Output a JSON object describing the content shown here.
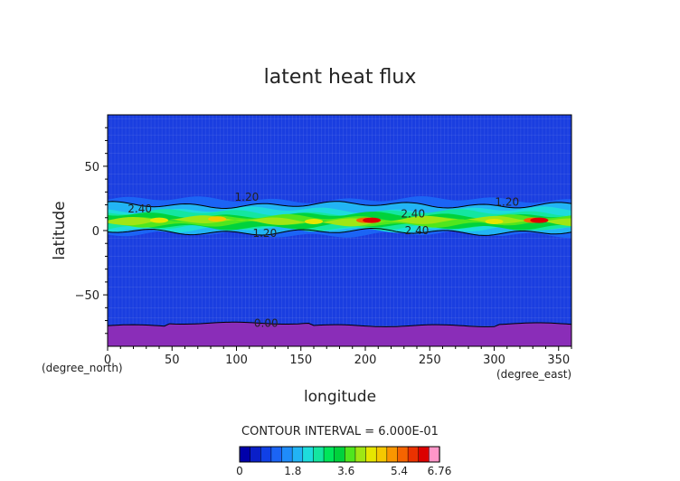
{
  "chart_data": {
    "type": "heatmap",
    "title": "latent heat flux",
    "xlabel": "longitude",
    "ylabel": "latitude",
    "x_unit": "(degree_east)",
    "y_unit": "(degree_north)",
    "xlim": [
      0,
      360
    ],
    "ylim": [
      -90,
      90
    ],
    "x_ticks": [
      "0",
      "50",
      "100",
      "150",
      "200",
      "250",
      "300",
      "350"
    ],
    "y_ticks": [
      "50",
      "0",
      "−50"
    ],
    "y_tick_values": [
      50,
      0,
      -50
    ],
    "x_tick_values": [
      0,
      50,
      100,
      150,
      200,
      250,
      300,
      350
    ],
    "contour_interval_text": "CONTOUR INTERVAL = 6.000E-01",
    "contour_labels": [
      {
        "text": "2.40",
        "lon": 25,
        "lat": 17
      },
      {
        "text": "1.20",
        "lon": 108,
        "lat": 26
      },
      {
        "text": "1.20",
        "lon": 122,
        "lat": -2
      },
      {
        "text": "2.40",
        "lon": 237,
        "lat": 13
      },
      {
        "text": "2.40",
        "lon": 240,
        "lat": 0
      },
      {
        "text": "1.20",
        "lon": 310,
        "lat": 22
      },
      {
        "text": "0.00",
        "lon": 123,
        "lat": -72
      }
    ],
    "colorbar": {
      "tick_labels": [
        "0",
        "1.8",
        "3.6",
        "5.4",
        "6.76"
      ],
      "min": 0,
      "max": 6.76,
      "colors": [
        "#0000aa",
        "#0a1fc8",
        "#1040e6",
        "#1b64f5",
        "#1f8cfa",
        "#22b4f5",
        "#1edcdc",
        "#14e6a0",
        "#00e65a",
        "#00d23c",
        "#50e61e",
        "#a0e614",
        "#e6e600",
        "#f5c800",
        "#fa9600",
        "#f56400",
        "#eb3200",
        "#dc0000",
        "#ff96c8"
      ],
      "background_color": "#1a3ee0",
      "polar_color": "#8a2db8"
    }
  }
}
